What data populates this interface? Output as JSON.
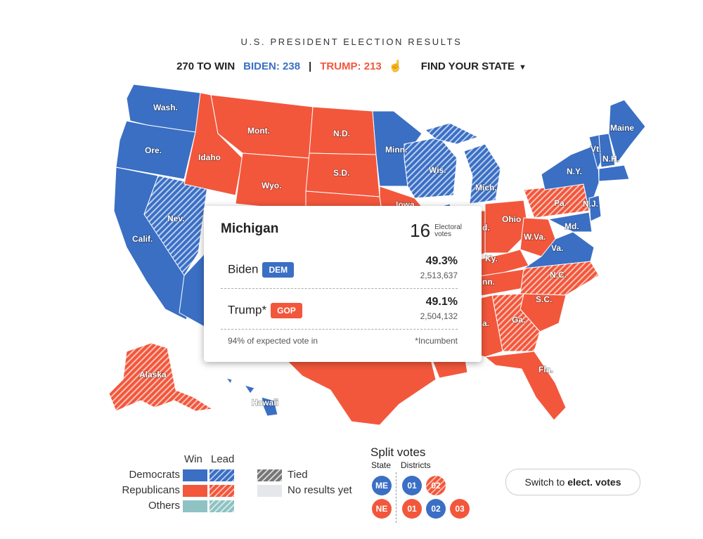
{
  "header": {
    "title": "U.S. PRESIDENT ELECTION RESULTS",
    "to_win": "270 TO WIN",
    "biden": "BIDEN: 238",
    "sep": "|",
    "trump": "TRUMP: 213",
    "find_state": "FIND YOUR STATE",
    "caret": "▼",
    "hand_icon": "hand-pointer-icon"
  },
  "colors": {
    "dem": "#3a6fc4",
    "gop": "#f2573c",
    "other": "#8fc2c2",
    "tied": "#777777",
    "none": "#e5e7ea"
  },
  "states": {
    "wash": "Wash.",
    "ore": "Ore.",
    "calif": "Calif.",
    "nev": "Nev.",
    "idaho": "Idaho",
    "mont": "Mont.",
    "wyo": "Wyo.",
    "nd": "N.D.",
    "sd": "S.D.",
    "minn": "Minn.",
    "wis": "Wis.",
    "mich": "Mich.",
    "iowa": "Iowa",
    "ohio": "Ohio",
    "pa": "Pa.",
    "ny": "N.Y.",
    "vt": "Vt.",
    "nh": "N.H.",
    "maine": "Maine",
    "nj": "N.J.",
    "md": "Md.",
    "wva": "W.Va.",
    "va": "Va.",
    "ky": "Ky.",
    "tenn": "nn.",
    "nc": "N.C.",
    "sc": "S.C.",
    "ga": "Ga.",
    "ala": "a.",
    "fla": "Fla.",
    "ind": "d.",
    "alaska": "Alaska",
    "hawaii": "Hawaii"
  },
  "tooltip": {
    "state": "Michigan",
    "electoral_votes": "16",
    "ev_label_1": "Electoral",
    "ev_label_2": "votes",
    "candidates": [
      {
        "name": "Biden",
        "party": "DEM",
        "pct": "49.3%",
        "votes": "2,513,637"
      },
      {
        "name": "Trump*",
        "party": "GOP",
        "pct": "49.1%",
        "votes": "2,504,132"
      }
    ],
    "expected": "94% of expected vote in",
    "incumbent": "*Incumbent"
  },
  "legend": {
    "win": "Win",
    "lead": "Lead",
    "democrats": "Democrats",
    "republicans": "Republicans",
    "others": "Others",
    "tied": "Tied",
    "no_results": "No results yet",
    "split_title": "Split votes",
    "state_label": "State",
    "districts_label": "Districts",
    "me": "ME",
    "me_d1": "01",
    "me_d2": "02",
    "ne": "NE",
    "ne_d1": "01",
    "ne_d2": "02",
    "ne_d3": "03"
  },
  "switch_button": {
    "prefix": "Switch to ",
    "bold": "elect. votes"
  }
}
